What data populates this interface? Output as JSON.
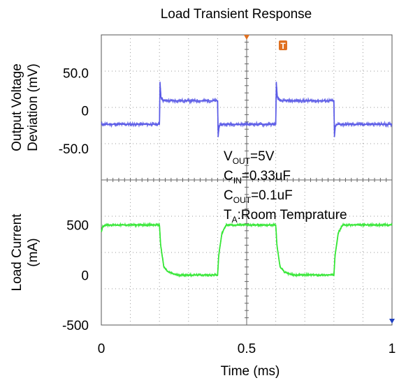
{
  "chart_data": {
    "type": "line",
    "title": "Load Transient Response",
    "xlabel": "Time (ms)",
    "x_ticks": [
      {
        "value": 0,
        "label": "0"
      },
      {
        "value": 0.5,
        "label": "0.5"
      },
      {
        "value": 1,
        "label": "1"
      }
    ],
    "xlim": [
      0,
      1
    ],
    "grid": true,
    "panels": [
      {
        "id": "voltage",
        "ylabel_lines": [
          "Output Voltage",
          "Deviation (mV)"
        ],
        "ylim": [
          -91.5,
          100
        ],
        "y_ticks": [
          {
            "value": 50,
            "label": "50.0"
          },
          {
            "value": 0,
            "label": "0"
          },
          {
            "value": -50,
            "label": "-50.0"
          }
        ],
        "series": [
          {
            "color": "#5a5ae6",
            "x": [
              0,
              0.2,
              0.202,
              0.205,
              0.214,
              0.4,
              0.402,
              0.405,
              0.414,
              0.6,
              0.602,
              0.605,
              0.614,
              0.8,
              0.802,
              0.805,
              0.814,
              1.0
            ],
            "y": [
              -18,
              -18,
              38,
              18,
              13,
              13,
              -35,
              -20,
              -18,
              -18,
              38,
              18,
              13,
              13,
              -35,
              -20,
              -18,
              -18
            ]
          }
        ]
      },
      {
        "id": "current",
        "ylabel_lines": [
          "Load Current",
          "(mA)"
        ],
        "ylim": [
          -500,
          950
        ],
        "y_ticks": [
          {
            "value": 500,
            "label": "500"
          },
          {
            "value": 0,
            "label": "0"
          },
          {
            "value": -500,
            "label": "-500"
          }
        ],
        "series": [
          {
            "color": "#33e633",
            "x": [
              0,
              0.004,
              0.012,
              0.2,
              0.204,
              0.215,
              0.23,
              0.26,
              0.4,
              0.404,
              0.415,
              0.43,
              0.6,
              0.604,
              0.615,
              0.63,
              0.66,
              0.8,
              0.804,
              0.815,
              0.83,
              1.0
            ],
            "y": [
              430,
              480,
              500,
              500,
              300,
              80,
              30,
              0,
              0,
              200,
              420,
              500,
              500,
              300,
              80,
              30,
              0,
              0,
              200,
              420,
              500,
              500
            ]
          }
        ]
      }
    ],
    "annotations": [
      {
        "base": "V",
        "sub": "OUT",
        "rest": "=5V"
      },
      {
        "base": "C",
        "sub": "IN",
        "rest": "=0.33uF"
      },
      {
        "base": "C",
        "sub": "OUT",
        "rest": "=0.1uF"
      },
      {
        "base": "T",
        "sub": "A",
        "rest": ":Room Temprature"
      }
    ],
    "markers": [
      {
        "name": "trigger-position-marker",
        "x": 0.5,
        "color": "#e07020"
      },
      {
        "name": "trigger-level-marker",
        "label": "T",
        "x": 0.625,
        "color": "#e07020"
      },
      {
        "name": "channel-ground-marker",
        "x": 1.0,
        "color": "#1f3fbf"
      }
    ]
  }
}
